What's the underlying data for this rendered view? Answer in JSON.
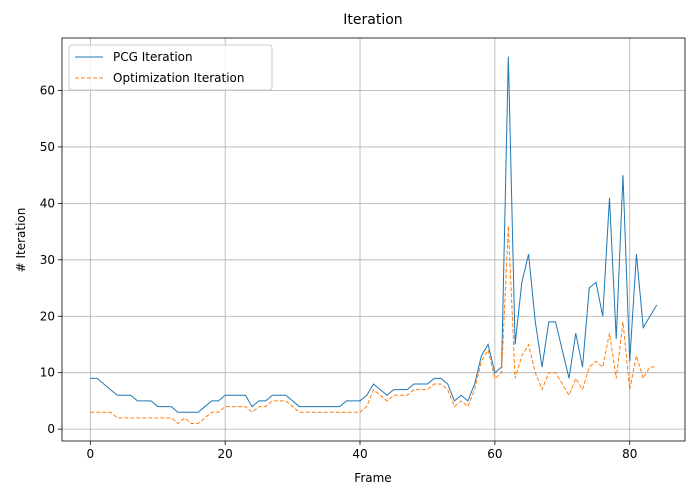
{
  "chart_data": {
    "type": "line",
    "title": "Iteration",
    "x_label": "Frame",
    "y_label": "# Iteration",
    "x": [
      0,
      1,
      2,
      3,
      4,
      5,
      6,
      7,
      8,
      9,
      10,
      11,
      12,
      13,
      14,
      15,
      16,
      17,
      18,
      19,
      20,
      21,
      22,
      23,
      24,
      25,
      26,
      27,
      28,
      29,
      30,
      31,
      32,
      33,
      34,
      35,
      36,
      37,
      38,
      39,
      40,
      41,
      42,
      43,
      44,
      45,
      46,
      47,
      48,
      49,
      50,
      51,
      52,
      53,
      54,
      55,
      56,
      57,
      58,
      59,
      60,
      61,
      62,
      63,
      64,
      65,
      66,
      67,
      68,
      69,
      70,
      71,
      72,
      73,
      74,
      75,
      76,
      77,
      78,
      79,
      80,
      81,
      82,
      83,
      84
    ],
    "series": [
      {
        "name": "PCG Iteration",
        "color": "#1f77b4",
        "dash": false,
        "values": [
          9,
          9,
          8,
          7,
          6,
          6,
          6,
          5,
          5,
          5,
          4,
          4,
          4,
          3,
          3,
          3,
          3,
          4,
          5,
          5,
          6,
          6,
          6,
          6,
          4,
          5,
          5,
          6,
          6,
          6,
          5,
          4,
          4,
          4,
          4,
          4,
          4,
          4,
          5,
          5,
          5,
          6,
          8,
          7,
          6,
          7,
          7,
          7,
          8,
          8,
          8,
          9,
          9,
          8,
          5,
          6,
          5,
          8,
          13,
          15,
          10,
          11,
          66,
          15,
          26,
          31,
          19,
          11,
          19,
          19,
          14,
          9,
          17,
          11,
          25,
          26,
          20,
          41,
          16,
          45,
          12,
          31,
          18,
          20,
          22
        ]
      },
      {
        "name": "Optimization Iteration",
        "color": "#ff7f0e",
        "dash": true,
        "values": [
          3,
          3,
          3,
          3,
          2,
          2,
          2,
          2,
          2,
          2,
          2,
          2,
          2,
          1,
          2,
          1,
          1,
          2,
          3,
          3,
          4,
          4,
          4,
          4,
          3,
          4,
          4,
          5,
          5,
          5,
          4,
          3,
          3,
          3,
          3,
          3,
          3,
          3,
          3,
          3,
          3,
          4,
          7,
          6,
          5,
          6,
          6,
          6,
          7,
          7,
          7,
          8,
          8,
          7,
          4,
          5,
          4,
          7,
          12,
          14,
          9,
          10,
          36,
          9,
          13,
          15,
          10,
          7,
          10,
          10,
          8,
          6,
          9,
          7,
          11,
          12,
          11,
          17,
          9,
          19,
          7,
          13,
          9,
          11,
          11
        ]
      }
    ],
    "xlim": [
      -4.2,
      88.2
    ],
    "ylim": [
      -2.1,
      69.3
    ],
    "xticks": [
      0,
      20,
      40,
      60,
      80
    ],
    "yticks": [
      0,
      10,
      20,
      30,
      40,
      50,
      60
    ],
    "grid": true,
    "legend": "upper-left"
  }
}
